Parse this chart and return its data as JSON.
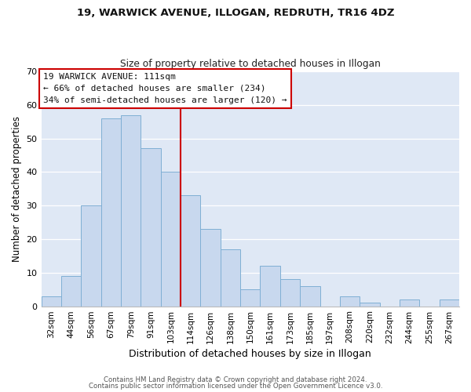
{
  "title1": "19, WARWICK AVENUE, ILLOGAN, REDRUTH, TR16 4DZ",
  "title2": "Size of property relative to detached houses in Illogan",
  "xlabel": "Distribution of detached houses by size in Illogan",
  "ylabel": "Number of detached properties",
  "bar_labels": [
    "32sqm",
    "44sqm",
    "56sqm",
    "67sqm",
    "79sqm",
    "91sqm",
    "103sqm",
    "114sqm",
    "126sqm",
    "138sqm",
    "150sqm",
    "161sqm",
    "173sqm",
    "185sqm",
    "197sqm",
    "208sqm",
    "220sqm",
    "232sqm",
    "244sqm",
    "255sqm",
    "267sqm"
  ],
  "bar_values": [
    3,
    9,
    30,
    56,
    57,
    47,
    40,
    33,
    23,
    17,
    5,
    12,
    8,
    6,
    0,
    3,
    1,
    0,
    2,
    0,
    2
  ],
  "bar_color": "#c8d8ee",
  "bar_edge_color": "#7fafd4",
  "vline_color": "#cc0000",
  "annotation_title": "19 WARWICK AVENUE: 111sqm",
  "annotation_line1": "← 66% of detached houses are smaller (234)",
  "annotation_line2": "34% of semi-detached houses are larger (120) →",
  "annotation_box_edge": "#cc0000",
  "ylim": [
    0,
    70
  ],
  "yticks": [
    0,
    10,
    20,
    30,
    40,
    50,
    60,
    70
  ],
  "footer1": "Contains HM Land Registry data © Crown copyright and database right 2024.",
  "footer2": "Contains public sector information licensed under the Open Government Licence v3.0."
}
